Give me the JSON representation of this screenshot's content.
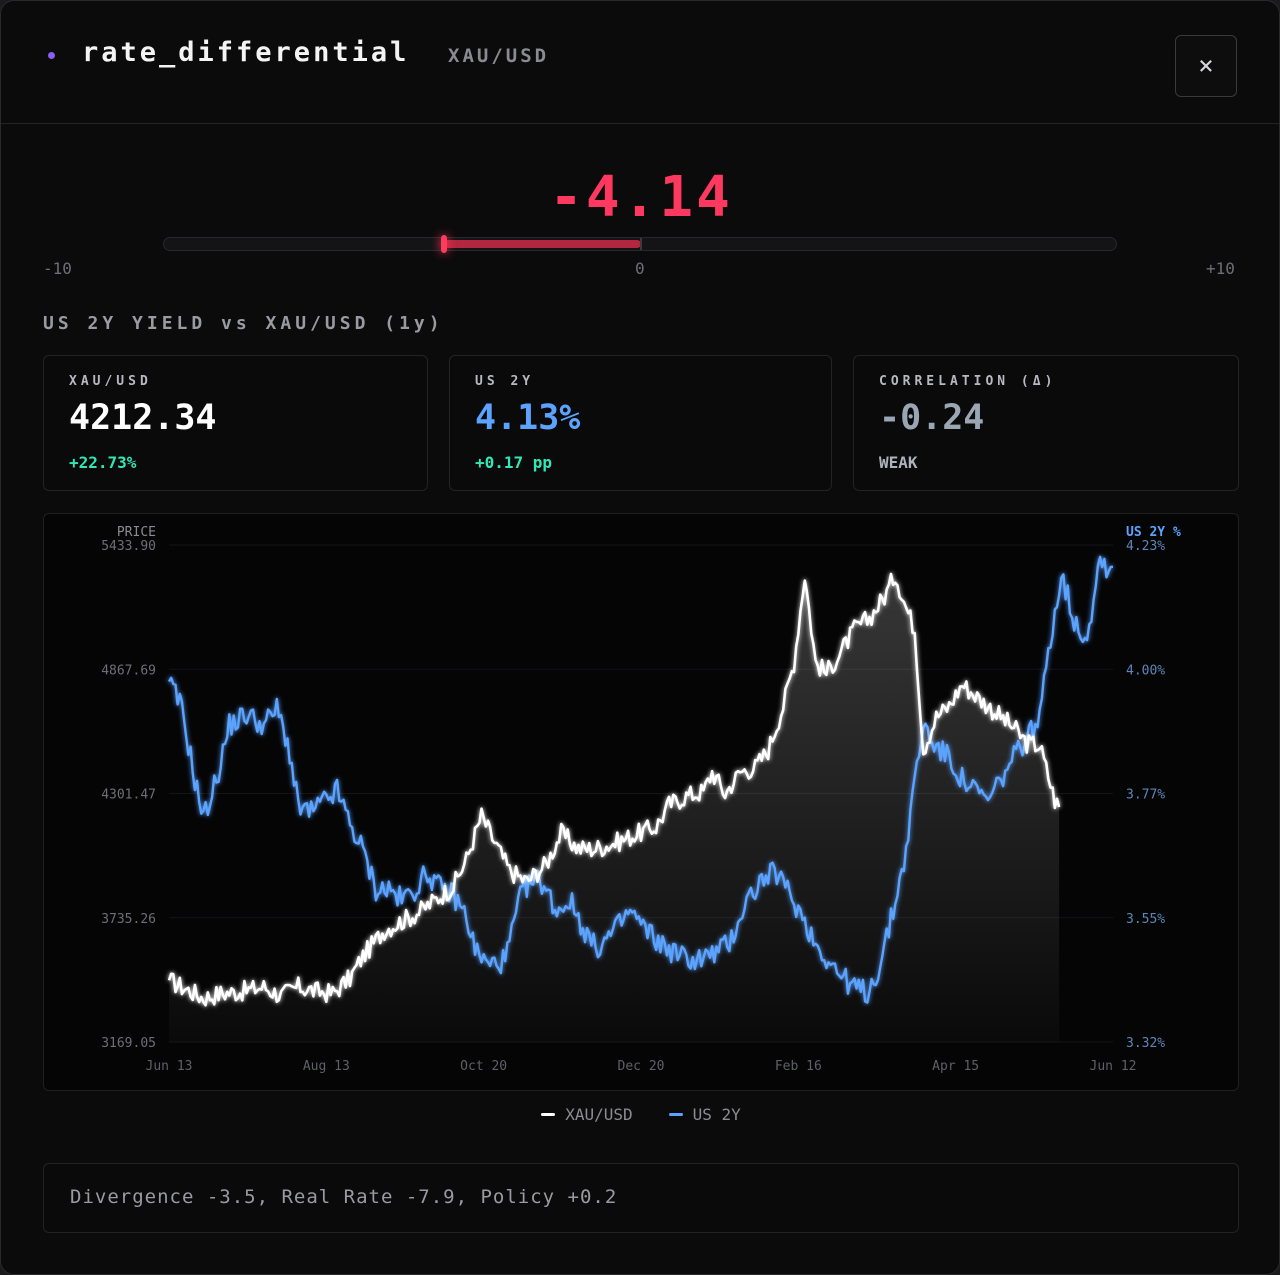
{
  "header": {
    "title": "rate_differential",
    "pair": "XAU/USD",
    "close_icon": "×"
  },
  "score": {
    "value": "-4.14",
    "numeric": -4.14,
    "min_label": "-10",
    "zero_label": "0",
    "max_label": "+10",
    "min": -10,
    "max": 10,
    "color": "#ff3860"
  },
  "section_title": "US 2Y YIELD vs XAU/USD (1y)",
  "cards": [
    {
      "label": "XAU/USD",
      "value": "4212.34",
      "sub": "+22.73%",
      "value_color": "#ffffff",
      "sub_color": "#2ee8b6"
    },
    {
      "label": "US 2Y",
      "value": "4.13%",
      "sub": "+0.17 pp",
      "value_color": "#5ba3ff",
      "sub_color": "#2ee8b6"
    },
    {
      "label": "CORRELATION (Δ)",
      "value": "-0.24",
      "sub": "WEAK",
      "value_color": "#9aa6b4",
      "sub_color": "#aeb3bb"
    }
  ],
  "chart_data": {
    "type": "line",
    "left_axis_title": "PRICE",
    "right_axis_title": "US 2Y %",
    "left_ticks": [
      "5433.90",
      "4867.69",
      "4301.47",
      "3735.26",
      "3169.05"
    ],
    "right_ticks": [
      "4.23%",
      "4.00%",
      "3.77%",
      "3.55%",
      "3.32%"
    ],
    "x_ticks": [
      "Jun 13",
      "Aug 13",
      "Oct 20",
      "Dec 20",
      "Feb 16",
      "Apr 15",
      "Jun 12"
    ],
    "left_range": [
      3169.05,
      5433.9
    ],
    "right_range": [
      3.32,
      4.23
    ],
    "grid": true,
    "series": [
      {
        "name": "XAU/USD",
        "color": "#ffffff",
        "axis": "left",
        "anchors": [
          [
            0,
            3450
          ],
          [
            8,
            3410
          ],
          [
            16,
            3370
          ],
          [
            24,
            3390
          ],
          [
            34,
            3400
          ],
          [
            44,
            3420
          ],
          [
            52,
            3380
          ],
          [
            60,
            3420
          ],
          [
            68,
            3400
          ],
          [
            76,
            3390
          ],
          [
            84,
            3460
          ],
          [
            90,
            3560
          ],
          [
            100,
            3680
          ],
          [
            108,
            3720
          ],
          [
            116,
            3760
          ],
          [
            124,
            3820
          ],
          [
            132,
            3880
          ],
          [
            138,
            4000
          ],
          [
            145,
            4200
          ],
          [
            150,
            4100
          ],
          [
            158,
            3950
          ],
          [
            166,
            3900
          ],
          [
            175,
            3980
          ],
          [
            182,
            4120
          ],
          [
            190,
            4050
          ],
          [
            198,
            4050
          ],
          [
            208,
            4080
          ],
          [
            218,
            4120
          ],
          [
            226,
            4150
          ],
          [
            232,
            4250
          ],
          [
            240,
            4290
          ],
          [
            248,
            4310
          ],
          [
            252,
            4400
          ],
          [
            258,
            4300
          ],
          [
            265,
            4400
          ],
          [
            272,
            4420
          ],
          [
            278,
            4500
          ],
          [
            285,
            4700
          ],
          [
            290,
            4900
          ],
          [
            295,
            5300
          ],
          [
            300,
            4900
          ],
          [
            305,
            4850
          ],
          [
            312,
            4950
          ],
          [
            318,
            5050
          ],
          [
            325,
            5100
          ],
          [
            332,
            5200
          ],
          [
            337,
            5300
          ],
          [
            342,
            5150
          ],
          [
            346,
            5050
          ],
          [
            350,
            4500
          ],
          [
            356,
            4650
          ],
          [
            362,
            4700
          ],
          [
            368,
            4800
          ],
          [
            374,
            4750
          ],
          [
            380,
            4700
          ],
          [
            386,
            4650
          ],
          [
            392,
            4600
          ],
          [
            398,
            4530
          ],
          [
            404,
            4520
          ],
          [
            408,
            4380
          ],
          [
            411,
            4270
          ],
          [
            413,
            4240
          ]
        ]
      },
      {
        "name": "US 2Y",
        "color": "#5ba3ff",
        "axis": "right",
        "anchors": [
          [
            0,
            3.98
          ],
          [
            6,
            3.93
          ],
          [
            12,
            3.8
          ],
          [
            16,
            3.73
          ],
          [
            22,
            3.8
          ],
          [
            28,
            3.9
          ],
          [
            36,
            3.92
          ],
          [
            44,
            3.9
          ],
          [
            50,
            3.93
          ],
          [
            55,
            3.87
          ],
          [
            60,
            3.75
          ],
          [
            66,
            3.74
          ],
          [
            72,
            3.76
          ],
          [
            78,
            3.78
          ],
          [
            84,
            3.72
          ],
          [
            90,
            3.67
          ],
          [
            96,
            3.6
          ],
          [
            102,
            3.6
          ],
          [
            108,
            3.58
          ],
          [
            114,
            3.6
          ],
          [
            120,
            3.63
          ],
          [
            126,
            3.6
          ],
          [
            132,
            3.59
          ],
          [
            138,
            3.55
          ],
          [
            142,
            3.49
          ],
          [
            148,
            3.46
          ],
          [
            156,
            3.47
          ],
          [
            164,
            3.6
          ],
          [
            172,
            3.62
          ],
          [
            180,
            3.56
          ],
          [
            186,
            3.58
          ],
          [
            192,
            3.53
          ],
          [
            198,
            3.49
          ],
          [
            206,
            3.52
          ],
          [
            214,
            3.56
          ],
          [
            220,
            3.53
          ],
          [
            228,
            3.5
          ],
          [
            236,
            3.48
          ],
          [
            244,
            3.47
          ],
          [
            252,
            3.48
          ],
          [
            260,
            3.5
          ],
          [
            268,
            3.58
          ],
          [
            276,
            3.62
          ],
          [
            282,
            3.63
          ],
          [
            288,
            3.59
          ],
          [
            294,
            3.55
          ],
          [
            300,
            3.5
          ],
          [
            306,
            3.47
          ],
          [
            312,
            3.44
          ],
          [
            318,
            3.42
          ],
          [
            324,
            3.41
          ],
          [
            330,
            3.46
          ],
          [
            336,
            3.56
          ],
          [
            342,
            3.67
          ],
          [
            346,
            3.8
          ],
          [
            350,
            3.9
          ],
          [
            356,
            3.86
          ],
          [
            362,
            3.84
          ],
          [
            368,
            3.8
          ],
          [
            374,
            3.78
          ],
          [
            380,
            3.76
          ],
          [
            386,
            3.8
          ],
          [
            392,
            3.84
          ],
          [
            398,
            3.88
          ],
          [
            404,
            3.91
          ],
          [
            408,
            4.04
          ],
          [
            412,
            4.13
          ],
          [
            414,
            4.18
          ],
          [
            420,
            4.09
          ],
          [
            426,
            4.06
          ],
          [
            430,
            4.16
          ],
          [
            432,
            4.21
          ],
          [
            435,
            4.19
          ],
          [
            438,
            4.19
          ]
        ]
      }
    ]
  },
  "legend": [
    {
      "label": "XAU/USD",
      "color": "#ffffff"
    },
    {
      "label": "US 2Y",
      "color": "#5ba3ff"
    }
  ],
  "footer": {
    "text": "Divergence -3.5, Real Rate -7.9, Policy +0.2"
  }
}
